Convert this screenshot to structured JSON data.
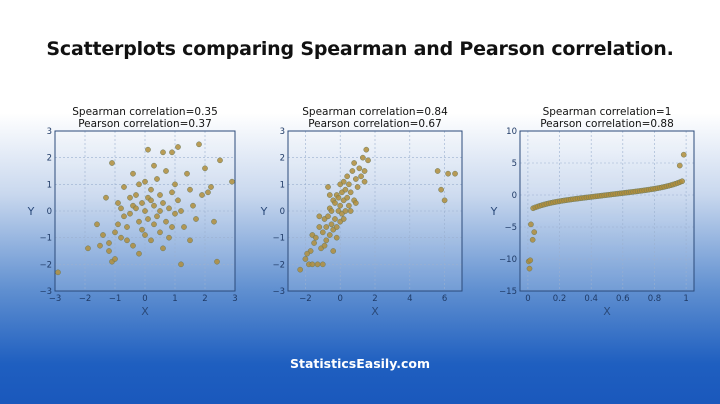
{
  "title": "Scatterplots comparing Spearman and Pearson correlation.",
  "footer": "StatisticsEasily.com",
  "colors": {
    "point_fill": "#b08d3a",
    "point_stroke": "#6e7a5a",
    "axis": "#2b4a7a",
    "tick_text": "#1f3a66"
  },
  "chart_data": [
    {
      "type": "scatter",
      "title_lines": [
        "Spearman correlation=0.35",
        "Pearson correlation=0.37"
      ],
      "xlabel": "X",
      "ylabel": "Y",
      "xlim": [
        -3,
        3
      ],
      "ylim": [
        -3,
        3
      ],
      "xticks": [
        -3,
        -2,
        -1,
        0,
        1,
        2,
        3
      ],
      "yticks": [
        -3,
        -2,
        -1,
        0,
        1,
        2,
        3
      ],
      "grid": true,
      "points": [
        [
          -2.9,
          -2.3
        ],
        [
          -1.9,
          -1.4
        ],
        [
          -1.6,
          -0.5
        ],
        [
          -1.4,
          -0.9
        ],
        [
          -1.2,
          -1.5
        ],
        [
          -1.2,
          -1.2
        ],
        [
          -1.1,
          -1.9
        ],
        [
          -1.0,
          -1.8
        ],
        [
          -1.1,
          1.8
        ],
        [
          -1.0,
          -0.8
        ],
        [
          -0.9,
          -0.5
        ],
        [
          -0.9,
          0.3
        ],
        [
          -0.8,
          -1.0
        ],
        [
          -0.7,
          0.9
        ],
        [
          -0.7,
          -0.2
        ],
        [
          -0.6,
          -0.6
        ],
        [
          -0.5,
          0.5
        ],
        [
          -0.5,
          -0.1
        ],
        [
          -0.4,
          0.2
        ],
        [
          -0.4,
          -1.3
        ],
        [
          -0.3,
          0.6
        ],
        [
          -0.3,
          0.1
        ],
        [
          -0.2,
          -0.4
        ],
        [
          -0.2,
          1.0
        ],
        [
          -0.1,
          0.3
        ],
        [
          -0.1,
          -0.7
        ],
        [
          0.0,
          1.1
        ],
        [
          0.0,
          0.0
        ],
        [
          0.0,
          -0.9
        ],
        [
          0.1,
          0.5
        ],
        [
          0.1,
          2.3
        ],
        [
          0.1,
          -0.3
        ],
        [
          0.2,
          0.8
        ],
        [
          0.2,
          -1.1
        ],
        [
          0.3,
          0.2
        ],
        [
          0.3,
          -0.5
        ],
        [
          0.4,
          1.2
        ],
        [
          0.4,
          -0.2
        ],
        [
          0.5,
          0.6
        ],
        [
          0.5,
          0.0
        ],
        [
          0.5,
          -0.8
        ],
        [
          0.6,
          2.2
        ],
        [
          0.6,
          0.3
        ],
        [
          0.7,
          -0.4
        ],
        [
          0.7,
          1.5
        ],
        [
          0.8,
          0.1
        ],
        [
          0.8,
          -1.0
        ],
        [
          0.9,
          2.2
        ],
        [
          0.9,
          0.7
        ],
        [
          1.0,
          -0.1
        ],
        [
          1.0,
          1.0
        ],
        [
          1.1,
          0.4
        ],
        [
          1.1,
          2.4
        ],
        [
          1.2,
          -2.0
        ],
        [
          1.2,
          0.0
        ],
        [
          1.3,
          -0.6
        ],
        [
          1.4,
          1.4
        ],
        [
          1.5,
          0.8
        ],
        [
          1.6,
          0.2
        ],
        [
          1.7,
          -0.3
        ],
        [
          1.8,
          2.5
        ],
        [
          1.9,
          0.6
        ],
        [
          2.0,
          1.6
        ],
        [
          2.1,
          0.7
        ],
        [
          2.3,
          -0.4
        ],
        [
          2.4,
          -1.9
        ],
        [
          2.5,
          1.9
        ],
        [
          2.9,
          1.1
        ],
        [
          -0.6,
          -1.1
        ],
        [
          0.2,
          0.4
        ],
        [
          -1.3,
          0.5
        ],
        [
          -0.2,
          -1.6
        ],
        [
          0.6,
          -1.4
        ],
        [
          -0.8,
          0.1
        ],
        [
          1.5,
          -1.1
        ],
        [
          0.9,
          -0.6
        ],
        [
          -0.4,
          1.4
        ],
        [
          0.3,
          1.7
        ],
        [
          -1.5,
          -1.3
        ],
        [
          2.2,
          0.9
        ]
      ]
    },
    {
      "type": "scatter",
      "title_lines": [
        "Spearman correlation=0.84",
        "Pearson correlation=0.67"
      ],
      "xlabel": "X",
      "ylabel": "Y",
      "xlim": [
        -3,
        7
      ],
      "ylim": [
        -3,
        3
      ],
      "xticks": [
        -2,
        0,
        2,
        4,
        6
      ],
      "yticks": [
        -3,
        -2,
        -1,
        0,
        1,
        2,
        3
      ],
      "grid": true,
      "points": [
        [
          -2.3,
          -2.2
        ],
        [
          -2.0,
          -1.8
        ],
        [
          -1.8,
          -2.0
        ],
        [
          -1.7,
          -1.5
        ],
        [
          -1.6,
          -0.9
        ],
        [
          -1.5,
          -1.2
        ],
        [
          -1.4,
          -1.0
        ],
        [
          -1.3,
          -2.0
        ],
        [
          -1.2,
          -0.6
        ],
        [
          -1.1,
          -1.4
        ],
        [
          -1.0,
          -0.8
        ],
        [
          -1.0,
          -2.0
        ],
        [
          -0.9,
          -0.3
        ],
        [
          -0.8,
          -1.1
        ],
        [
          -0.8,
          -0.6
        ],
        [
          -0.7,
          -0.2
        ],
        [
          -0.6,
          -0.9
        ],
        [
          -0.6,
          0.1
        ],
        [
          -0.5,
          -0.5
        ],
        [
          -0.5,
          0.0
        ],
        [
          -0.4,
          -0.7
        ],
        [
          -0.4,
          0.4
        ],
        [
          -0.3,
          -0.3
        ],
        [
          -0.3,
          0.3
        ],
        [
          -0.2,
          -0.6
        ],
        [
          -0.2,
          0.6
        ],
        [
          -0.1,
          0.0
        ],
        [
          -0.1,
          0.5
        ],
        [
          0.0,
          -0.4
        ],
        [
          0.0,
          0.2
        ],
        [
          0.0,
          1.0
        ],
        [
          0.1,
          0.7
        ],
        [
          0.1,
          -0.1
        ],
        [
          0.2,
          0.4
        ],
        [
          0.2,
          1.1
        ],
        [
          0.3,
          0.0
        ],
        [
          0.3,
          0.8
        ],
        [
          0.4,
          0.5
        ],
        [
          0.4,
          1.3
        ],
        [
          0.5,
          0.2
        ],
        [
          0.5,
          1.0
        ],
        [
          0.6,
          0.7
        ],
        [
          0.7,
          1.5
        ],
        [
          0.8,
          0.4
        ],
        [
          0.9,
          1.2
        ],
        [
          1.0,
          0.9
        ],
        [
          1.1,
          1.6
        ],
        [
          1.2,
          1.3
        ],
        [
          1.3,
          2.0
        ],
        [
          1.4,
          1.5
        ],
        [
          1.5,
          2.3
        ],
        [
          1.6,
          1.9
        ],
        [
          5.6,
          1.5
        ],
        [
          5.8,
          0.8
        ],
        [
          6.0,
          0.4
        ],
        [
          6.2,
          1.4
        ],
        [
          6.6,
          1.4
        ],
        [
          -0.9,
          -1.3
        ],
        [
          -0.2,
          -1.0
        ],
        [
          0.6,
          0.0
        ],
        [
          -1.9,
          -1.6
        ],
        [
          -0.6,
          0.6
        ],
        [
          0.8,
          1.8
        ],
        [
          -1.2,
          -0.2
        ],
        [
          1.4,
          1.1
        ],
        [
          0.2,
          -0.3
        ],
        [
          -0.4,
          -1.5
        ],
        [
          -1.6,
          -2.0
        ],
        [
          0.9,
          0.3
        ],
        [
          -0.7,
          0.9
        ]
      ]
    },
    {
      "type": "scatter",
      "title_lines": [
        "Spearman correlation=1",
        "Pearson correlation=0.88"
      ],
      "xlabel": "X",
      "ylabel": "Y",
      "xlim": [
        -0.05,
        1.05
      ],
      "ylim": [
        -15,
        10
      ],
      "xticks": [
        0.0,
        0.2,
        0.4,
        0.6,
        0.8,
        1.0
      ],
      "yticks": [
        -15,
        -10,
        -5,
        0,
        5,
        10
      ],
      "grid": true,
      "curve": "y = 30*(x-0.5)^5 + 3*(x-0.5)",
      "n_points": 70
    }
  ]
}
